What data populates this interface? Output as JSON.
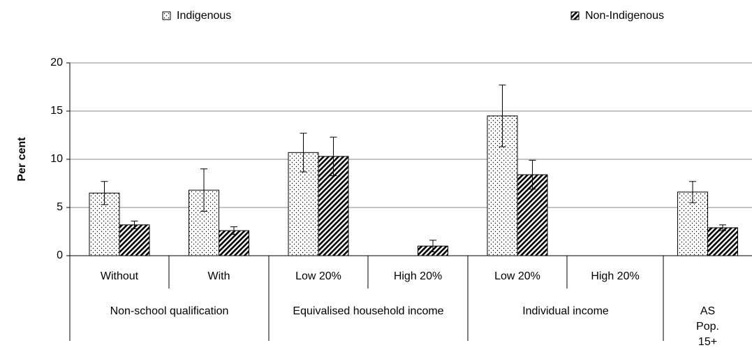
{
  "chart_data": {
    "type": "bar",
    "y_label": "Per cent",
    "categories": [
      "Without",
      "With",
      "Low  20%",
      "High 20%",
      "Low  20%",
      "High 20%",
      null
    ],
    "groups": [
      {
        "label": "Non-school qualification",
        "span": 2
      },
      {
        "label": "Equivalised household income",
        "span": 2
      },
      {
        "label": "Individual income",
        "span": 2
      },
      {
        "label": "AS Pop. 15+",
        "span": 1
      }
    ],
    "series": [
      {
        "name": "Indigenous",
        "color": "#000000",
        "pattern": "dots",
        "values": [
          6.5,
          6.8,
          10.7,
          0,
          14.5,
          0,
          6.6
        ],
        "errors": [
          1.2,
          2.2,
          2.0,
          null,
          3.2,
          null,
          1.1
        ]
      },
      {
        "name": "Non-Indigenous",
        "color": "#000000",
        "pattern": "hatch",
        "values": [
          3.2,
          2.6,
          10.3,
          1.0,
          8.4,
          0,
          2.9
        ],
        "errors": [
          0.4,
          0.4,
          2.0,
          0.6,
          1.5,
          null,
          0.3
        ]
      }
    ],
    "ylim": [
      0,
      20
    ],
    "yticks": [
      0,
      5,
      10,
      15,
      20
    ],
    "grid": true
  }
}
